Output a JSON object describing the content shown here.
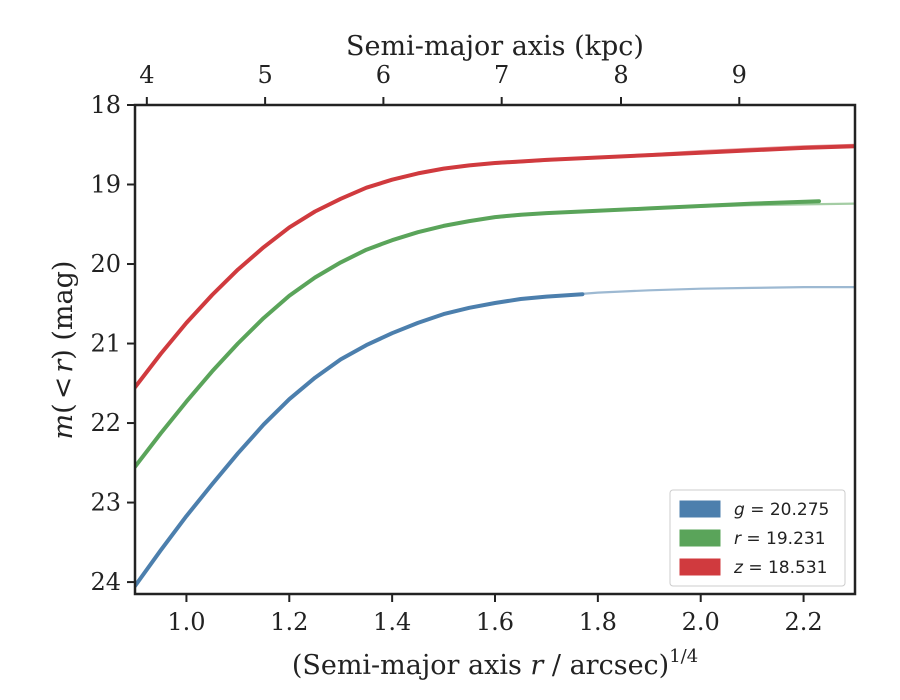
{
  "chart_data": {
    "type": "line",
    "xlabel": "(Semi-major axis r / arcsec)^{1/4}",
    "xlabel_parts": {
      "prefix": "(Semi-major axis ",
      "var": "r",
      "suffix": " / arcsec)",
      "exponent": "1/4"
    },
    "ylabel": "m(< r) (mag)",
    "ylabel_parts": {
      "var_m": "m",
      "open": "(",
      "lt": "<",
      "var_r": "r",
      "close": ") (mag)"
    },
    "top_xlabel": "Semi-major axis (kpc)",
    "xlim": [
      0.9,
      2.3
    ],
    "ylim": [
      18,
      24.15
    ],
    "y_inverted": true,
    "x_ticks": [
      1.0,
      1.2,
      1.4,
      1.6,
      1.8,
      2.0,
      2.2
    ],
    "x_tick_labels": [
      "1.0",
      "1.2",
      "1.4",
      "1.6",
      "1.8",
      "2.0",
      "2.2"
    ],
    "y_ticks": [
      18,
      19,
      20,
      21,
      22,
      23,
      24
    ],
    "y_tick_labels": [
      "18",
      "19",
      "20",
      "21",
      "22",
      "23",
      "24"
    ],
    "top_ticks_kpc": [
      4,
      5,
      6,
      7,
      8,
      9
    ],
    "top_tick_labels": [
      "4",
      "5",
      "6",
      "7",
      "8",
      "9"
    ],
    "top_tick_positions_x": [
      0.923,
      1.153,
      1.383,
      1.613,
      1.845,
      2.075
    ],
    "grid": false,
    "legend_position": "bottom-right",
    "series": [
      {
        "name": "g = 20.275",
        "legend_var": "g",
        "legend_value": "= 20.275",
        "color": "#4c7fad",
        "x": [
          0.9,
          0.95,
          1.0,
          1.05,
          1.1,
          1.15,
          1.2,
          1.25,
          1.3,
          1.35,
          1.4,
          1.45,
          1.5,
          1.55,
          1.6,
          1.65,
          1.7,
          1.77
        ],
        "y": [
          24.05,
          23.6,
          23.17,
          22.77,
          22.38,
          22.02,
          21.7,
          21.43,
          21.2,
          21.02,
          20.87,
          20.74,
          20.63,
          20.55,
          20.49,
          20.44,
          20.41,
          20.38
        ],
        "model_x": [
          1.6,
          1.7,
          1.8,
          1.9,
          2.0,
          2.1,
          2.2,
          2.3
        ],
        "model_y": [
          20.48,
          20.41,
          20.36,
          20.33,
          20.31,
          20.3,
          20.29,
          20.29
        ]
      },
      {
        "name": "r = 19.231",
        "legend_var": "r",
        "legend_value": "= 19.231",
        "color": "#5aa45a",
        "x": [
          0.9,
          0.95,
          1.0,
          1.05,
          1.1,
          1.15,
          1.2,
          1.25,
          1.3,
          1.35,
          1.4,
          1.45,
          1.5,
          1.55,
          1.6,
          1.65,
          1.7,
          1.8,
          1.9,
          2.0,
          2.1,
          2.23
        ],
        "y": [
          22.55,
          22.13,
          21.73,
          21.35,
          21.0,
          20.68,
          20.4,
          20.17,
          19.98,
          19.82,
          19.7,
          19.6,
          19.52,
          19.46,
          19.41,
          19.38,
          19.36,
          19.33,
          19.3,
          19.27,
          19.24,
          19.21
        ],
        "model_x": [
          1.6,
          1.7,
          1.8,
          1.9,
          2.0,
          2.1,
          2.2,
          2.3
        ],
        "model_y": [
          19.42,
          19.36,
          19.33,
          19.3,
          19.28,
          19.26,
          19.25,
          19.24
        ]
      },
      {
        "name": "z = 18.531",
        "legend_var": "z",
        "legend_value": "= 18.531",
        "color": "#d03a3e",
        "x": [
          0.9,
          0.95,
          1.0,
          1.05,
          1.1,
          1.15,
          1.2,
          1.25,
          1.3,
          1.35,
          1.4,
          1.45,
          1.5,
          1.55,
          1.6,
          1.65,
          1.7,
          1.8,
          1.9,
          2.0,
          2.1,
          2.2,
          2.3
        ],
        "y": [
          21.55,
          21.13,
          20.74,
          20.39,
          20.07,
          19.79,
          19.54,
          19.34,
          19.18,
          19.04,
          18.94,
          18.86,
          18.8,
          18.76,
          18.73,
          18.71,
          18.69,
          18.66,
          18.63,
          18.6,
          18.57,
          18.54,
          18.52
        ],
        "model_x": [
          1.6,
          1.7,
          1.8,
          1.9,
          2.0,
          2.1,
          2.2,
          2.3
        ],
        "model_y": [
          18.74,
          18.7,
          18.66,
          18.62,
          18.58,
          18.55,
          18.52,
          18.5
        ]
      }
    ]
  }
}
